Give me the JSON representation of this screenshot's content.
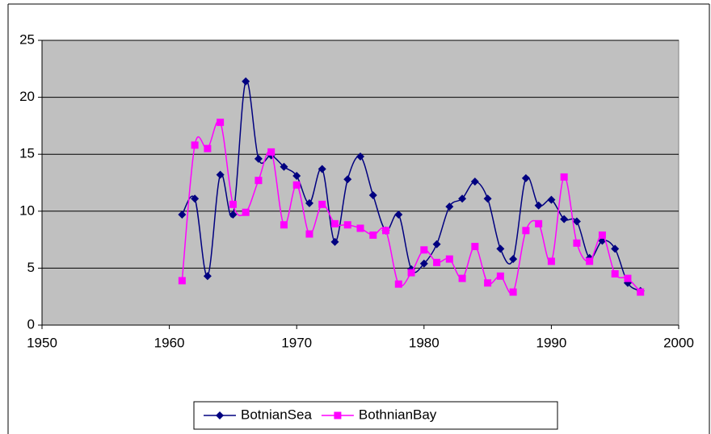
{
  "chart_data": {
    "type": "line",
    "x": [
      1961,
      1962,
      1963,
      1964,
      1965,
      1966,
      1967,
      1968,
      1969,
      1970,
      1971,
      1972,
      1973,
      1974,
      1975,
      1976,
      1977,
      1978,
      1979,
      1980,
      1981,
      1982,
      1983,
      1984,
      1985,
      1986,
      1987,
      1988,
      1989,
      1990,
      1991,
      1992,
      1993,
      1994,
      1995,
      1996,
      1997
    ],
    "series": [
      {
        "name": "BotnianSea",
        "color": "#000080",
        "marker": "diamond",
        "values": [
          9.7,
          11.1,
          4.3,
          13.2,
          9.7,
          21.4,
          14.6,
          14.9,
          13.9,
          13.1,
          10.7,
          13.7,
          7.3,
          12.8,
          14.8,
          11.4,
          8.3,
          9.7,
          4.9,
          5.4,
          7.1,
          10.4,
          11.1,
          12.6,
          11.1,
          6.7,
          5.8,
          12.9,
          10.5,
          11.0,
          9.3,
          9.1,
          5.9,
          7.4,
          6.7,
          3.7,
          3.0
        ]
      },
      {
        "name": "BothnianBay",
        "color": "#ff00ff",
        "marker": "square",
        "values": [
          3.9,
          15.8,
          15.5,
          17.8,
          10.6,
          9.9,
          12.7,
          15.2,
          8.8,
          12.3,
          8.0,
          10.6,
          8.9,
          8.8,
          8.5,
          7.9,
          8.3,
          3.6,
          4.6,
          6.6,
          5.5,
          5.8,
          4.1,
          6.9,
          3.7,
          4.3,
          2.9,
          8.3,
          8.9,
          5.6,
          13.0,
          7.2,
          5.6,
          7.9,
          4.5,
          4.1,
          2.9
        ]
      }
    ],
    "xlim": [
      1950,
      2000
    ],
    "xticks": [
      1950,
      1960,
      1970,
      1980,
      1990,
      2000
    ],
    "ylim": [
      0,
      25
    ],
    "yticks": [
      0,
      5,
      10,
      15,
      20,
      25
    ],
    "grid": true,
    "smooth": true,
    "legend": "bottom"
  }
}
